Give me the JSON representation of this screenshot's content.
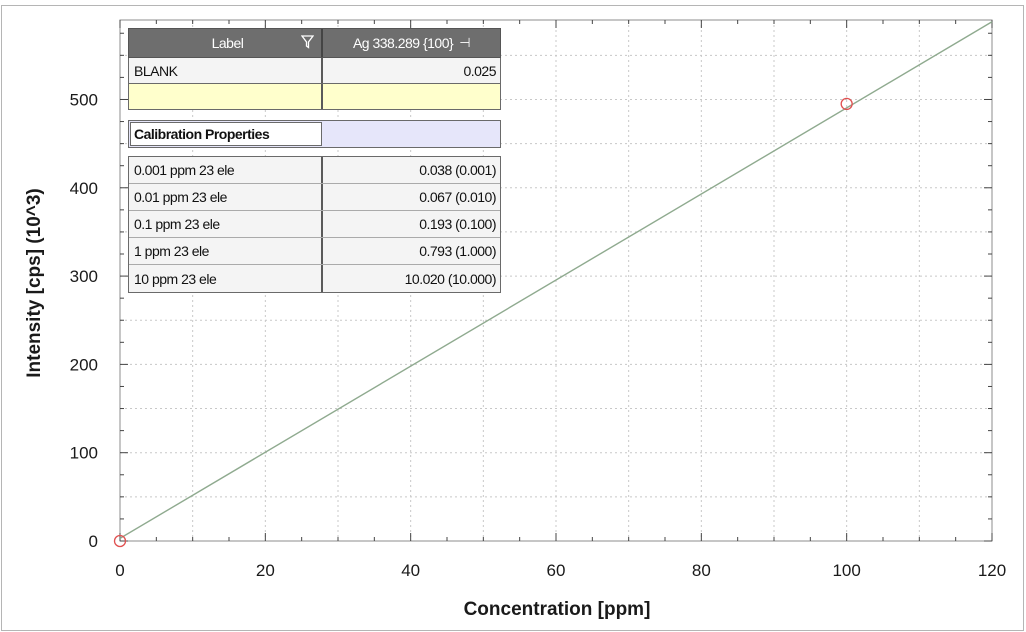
{
  "chart_data": {
    "type": "scatter",
    "xlabel": "Concentration [ppm]",
    "ylabel": "Intensity [cps] (10^3)",
    "xlim": [
      0,
      120
    ],
    "ylim": [
      0,
      590
    ],
    "x_ticks": [
      0,
      20,
      40,
      60,
      80,
      100,
      120
    ],
    "y_ticks": [
      0,
      100,
      200,
      300,
      400,
      500
    ],
    "grid": true,
    "calibration_line": {
      "x": [
        0,
        120
      ],
      "y": [
        3,
        588
      ]
    },
    "points": [
      {
        "x": 0,
        "y": 0
      },
      {
        "x": 100,
        "y": 495
      }
    ],
    "colors": {
      "line": "#8faa8f",
      "point": "#e05050",
      "grid": "#c8c8c8"
    }
  },
  "table": {
    "header": {
      "label_col": "Label",
      "value_col": "Ag 338.289 {100}"
    },
    "rows": [
      {
        "label": "BLANK",
        "value": "0.025"
      },
      {
        "label": "",
        "value": ""
      }
    ],
    "properties_label": "Calibration Properties",
    "standards": [
      {
        "label": "0.001 ppm 23 ele",
        "value": "0.038 (0.001)"
      },
      {
        "label": "0.01 ppm 23 ele",
        "value": "0.067 (0.010)"
      },
      {
        "label": "0.1 ppm 23 ele",
        "value": "0.193 (0.100)"
      },
      {
        "label": "1 ppm 23 ele",
        "value": "0.793 (1.000)"
      },
      {
        "label": "10 ppm 23 ele",
        "value": "10.020 (10.000)"
      }
    ]
  },
  "icons": {
    "filter": "funnel-icon",
    "pin": "pin-icon"
  }
}
